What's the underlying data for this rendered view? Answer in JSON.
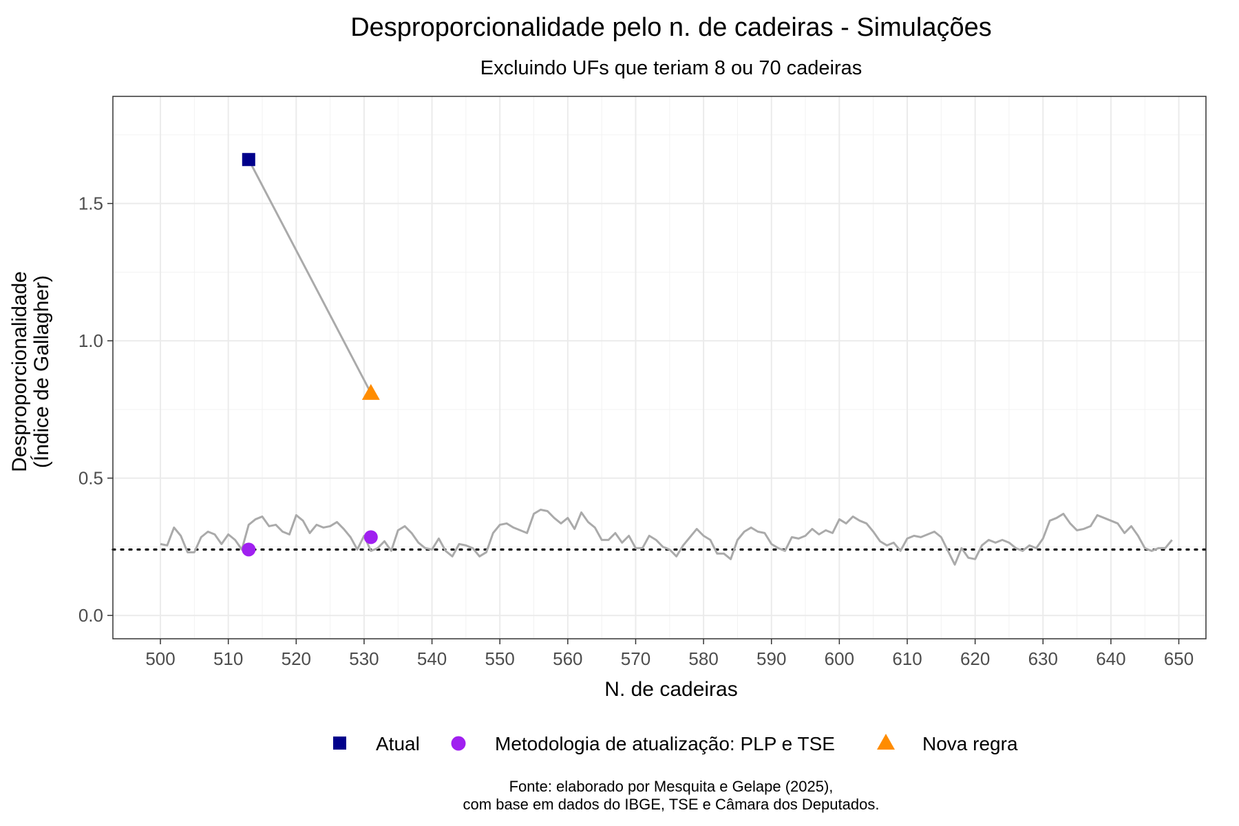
{
  "chart_data": {
    "type": "line",
    "title": "Desproporcionalidade pelo n. de cadeiras - Simulações",
    "subtitle": "Excluindo UFs que teriam 8 ou 70 cadeiras",
    "xlabel": "N. de cadeiras",
    "ylabel_lines": [
      "Desproporcionalidade",
      "(Índice de Gallagher)"
    ],
    "xlim": [
      493,
      654
    ],
    "ylim": [
      -0.085,
      1.89
    ],
    "x_ticks": [
      500,
      510,
      520,
      530,
      540,
      550,
      560,
      570,
      580,
      590,
      600,
      610,
      620,
      630,
      640,
      650
    ],
    "y_ticks": [
      0,
      0.5,
      1,
      1.5
    ],
    "y_tick_labels": [
      "0.0",
      "0.5",
      "1.0",
      "1.5"
    ],
    "x_tick_labels": [
      "500",
      "510",
      "520",
      "530",
      "540",
      "550",
      "560",
      "570",
      "580",
      "590",
      "600",
      "610",
      "620",
      "630",
      "640",
      "650"
    ],
    "grid": true,
    "legend_position": "bottom",
    "reference_line": {
      "y": 0.24,
      "style": "dotted",
      "color": "#000000"
    },
    "simulation_series": {
      "color": "#aaaaaa",
      "x_start": 500,
      "values": [
        0.26,
        0.255,
        0.32,
        0.29,
        0.23,
        0.23,
        0.285,
        0.305,
        0.295,
        0.26,
        0.295,
        0.275,
        0.24,
        0.33,
        0.35,
        0.36,
        0.325,
        0.33,
        0.305,
        0.295,
        0.365,
        0.345,
        0.3,
        0.33,
        0.32,
        0.325,
        0.34,
        0.315,
        0.285,
        0.24,
        0.29,
        0.235,
        0.245,
        0.27,
        0.235,
        0.31,
        0.325,
        0.3,
        0.265,
        0.245,
        0.24,
        0.28,
        0.235,
        0.215,
        0.26,
        0.255,
        0.245,
        0.215,
        0.23,
        0.3,
        0.33,
        0.335,
        0.32,
        0.31,
        0.3,
        0.37,
        0.385,
        0.38,
        0.355,
        0.335,
        0.355,
        0.315,
        0.375,
        0.34,
        0.32,
        0.275,
        0.275,
        0.3,
        0.265,
        0.29,
        0.245,
        0.245,
        0.29,
        0.275,
        0.25,
        0.24,
        0.215,
        0.255,
        0.285,
        0.315,
        0.29,
        0.275,
        0.225,
        0.225,
        0.205,
        0.275,
        0.305,
        0.32,
        0.305,
        0.3,
        0.26,
        0.245,
        0.235,
        0.285,
        0.28,
        0.29,
        0.315,
        0.295,
        0.31,
        0.3,
        0.35,
        0.335,
        0.36,
        0.345,
        0.335,
        0.305,
        0.27,
        0.255,
        0.265,
        0.235,
        0.28,
        0.29,
        0.285,
        0.295,
        0.305,
        0.285,
        0.235,
        0.185,
        0.245,
        0.21,
        0.205,
        0.255,
        0.275,
        0.265,
        0.275,
        0.265,
        0.245,
        0.235,
        0.255,
        0.245,
        0.28,
        0.345,
        0.355,
        0.37,
        0.335,
        0.31,
        0.315,
        0.325,
        0.365,
        0.355,
        0.345,
        0.335,
        0.3,
        0.325,
        0.29,
        0.245,
        0.235,
        0.245,
        0.245,
        0.275
      ]
    },
    "connector": {
      "color": "#aaaaaa",
      "from": [
        513,
        1.66
      ],
      "to": [
        531,
        0.81
      ]
    },
    "series": [
      {
        "name": "Atual",
        "shape": "square",
        "color": "#00008b",
        "x": 513,
        "y": 1.66
      },
      {
        "name": "Metodologia de atualização: PLP e TSE",
        "shape": "circle",
        "color": "#a020f0",
        "points": [
          [
            513,
            0.24
          ],
          [
            531,
            0.285
          ]
        ]
      },
      {
        "name": "Nova regra",
        "shape": "triangle",
        "color": "#ff8c00",
        "x": 531,
        "y": 0.81
      }
    ],
    "caption_lines": [
      "Fonte: elaborado por Mesquita e Gelape (2025),",
      "com base em dados do IBGE, TSE e Câmara dos Deputados."
    ]
  }
}
